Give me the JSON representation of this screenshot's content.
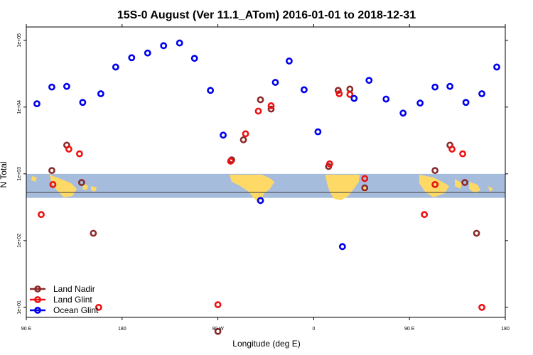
{
  "chart_data": {
    "type": "scatter",
    "title": "15S-0 August (Ver 11.1_ATom)   2016-01-01 to 2018-12-31",
    "xlabel": "Longitude (deg E)",
    "ylabel": "N Total",
    "x_ticks": [
      {
        "value": 0,
        "label": "90 E"
      },
      {
        "value": 90,
        "label": "180"
      },
      {
        "value": 180,
        "label": "90 W"
      },
      {
        "value": 270,
        "label": "0"
      },
      {
        "value": 360,
        "label": "90 E"
      },
      {
        "value": 450,
        "label": "180"
      }
    ],
    "y_ticks": [
      {
        "value": 1,
        "label": "1e+01"
      },
      {
        "value": 2,
        "label": "1e+02"
      },
      {
        "value": 3,
        "label": "1e+03"
      },
      {
        "value": 4,
        "label": "1e+04"
      },
      {
        "value": 5,
        "label": "1e+05"
      }
    ],
    "xlim": [
      0,
      450
    ],
    "ylim_log10": [
      0.85,
      5.2
    ],
    "log_y": true,
    "grid": false,
    "legend_position": "bottom-left",
    "map_strip": {
      "y_top_log10": 3.0,
      "y_bottom_log10": 2.64,
      "center_line_log10": 2.72,
      "ocean_color": "#a6bcdc",
      "land_color": "#ffd966",
      "line_color": "#444444"
    },
    "series": [
      {
        "name": "Land Nadir",
        "color": "#8b2a2a",
        "points": [
          {
            "x": 24,
            "y": 3.05
          },
          {
            "x": 38,
            "y": 3.43
          },
          {
            "x": 52,
            "y": 2.87
          },
          {
            "x": 63,
            "y": 2.11
          },
          {
            "x": 180,
            "y": 0.64
          },
          {
            "x": 193,
            "y": 3.21
          },
          {
            "x": 204,
            "y": 3.51
          },
          {
            "x": 220,
            "y": 4.11
          },
          {
            "x": 230,
            "y": 3.97
          },
          {
            "x": 284,
            "y": 3.11
          },
          {
            "x": 293,
            "y": 4.25
          },
          {
            "x": 304,
            "y": 4.27
          },
          {
            "x": 318,
            "y": 2.79
          },
          {
            "x": 384,
            "y": 3.05
          },
          {
            "x": 398,
            "y": 3.43
          },
          {
            "x": 412,
            "y": 2.87
          },
          {
            "x": 423,
            "y": 2.11
          }
        ]
      },
      {
        "name": "Land Glint",
        "color": "#ee1111",
        "points": [
          {
            "x": 14,
            "y": 2.39
          },
          {
            "x": 25,
            "y": 2.84
          },
          {
            "x": 40,
            "y": 3.37
          },
          {
            "x": 50,
            "y": 3.3
          },
          {
            "x": 68,
            "y": 1.0
          },
          {
            "x": 180,
            "y": 1.04
          },
          {
            "x": 192,
            "y": 3.19
          },
          {
            "x": 206,
            "y": 3.6
          },
          {
            "x": 218,
            "y": 3.94
          },
          {
            "x": 230,
            "y": 4.02
          },
          {
            "x": 285,
            "y": 3.15
          },
          {
            "x": 294,
            "y": 4.2
          },
          {
            "x": 304,
            "y": 4.19
          },
          {
            "x": 318,
            "y": 2.93
          },
          {
            "x": 374,
            "y": 2.39
          },
          {
            "x": 384,
            "y": 2.84
          },
          {
            "x": 400,
            "y": 3.37
          },
          {
            "x": 410,
            "y": 3.3
          },
          {
            "x": 428,
            "y": 1.0
          }
        ]
      },
      {
        "name": "Ocean Glint",
        "color": "#0000ee",
        "points": [
          {
            "x": 10,
            "y": 4.05
          },
          {
            "x": 24,
            "y": 4.3
          },
          {
            "x": 38,
            "y": 4.31
          },
          {
            "x": 53,
            "y": 4.07
          },
          {
            "x": 70,
            "y": 4.2
          },
          {
            "x": 84,
            "y": 4.6
          },
          {
            "x": 99,
            "y": 4.74
          },
          {
            "x": 114,
            "y": 4.81
          },
          {
            "x": 129,
            "y": 4.92
          },
          {
            "x": 144,
            "y": 4.96
          },
          {
            "x": 158,
            "y": 4.73
          },
          {
            "x": 173,
            "y": 4.25
          },
          {
            "x": 185,
            "y": 3.58
          },
          {
            "x": 220,
            "y": 2.6
          },
          {
            "x": 234,
            "y": 4.37
          },
          {
            "x": 247,
            "y": 4.69
          },
          {
            "x": 261,
            "y": 4.26
          },
          {
            "x": 274,
            "y": 3.63
          },
          {
            "x": 297,
            "y": 1.91
          },
          {
            "x": 308,
            "y": 4.13
          },
          {
            "x": 322,
            "y": 4.4
          },
          {
            "x": 338,
            "y": 4.12
          },
          {
            "x": 354,
            "y": 3.91
          },
          {
            "x": 370,
            "y": 4.06
          },
          {
            "x": 384,
            "y": 4.3
          },
          {
            "x": 398,
            "y": 4.31
          },
          {
            "x": 413,
            "y": 4.07
          },
          {
            "x": 428,
            "y": 4.2
          },
          {
            "x": 442,
            "y": 4.6
          }
        ]
      }
    ]
  }
}
